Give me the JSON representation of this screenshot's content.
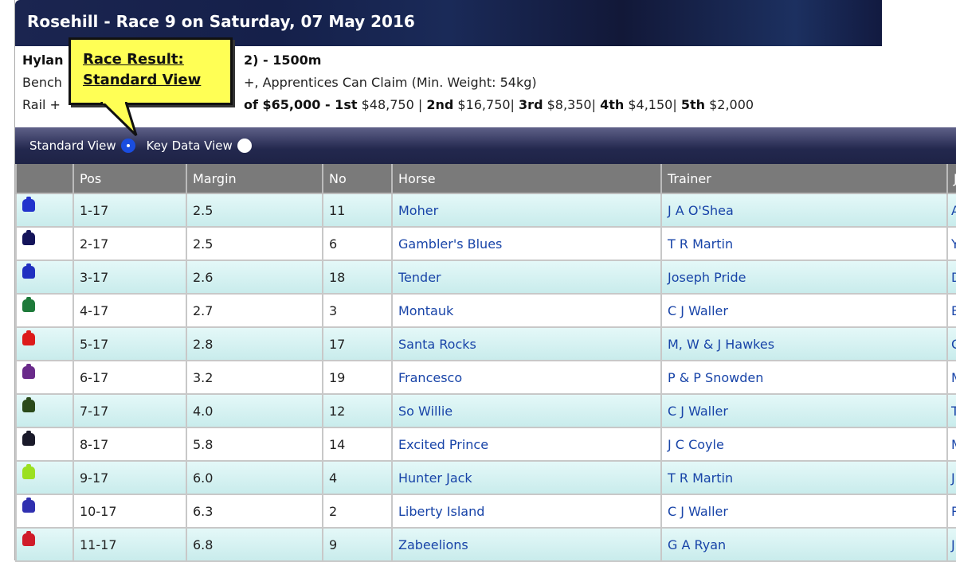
{
  "title": "Rosehill - Race 9 on Saturday, 07 May 2016",
  "race": {
    "name_visible_start": "Hylan",
    "name_visible_end": "2) - 1500m",
    "line2_start": "Bench",
    "line2_end": "+, Apprentices Can Claim (Min. Weight: 54kg)",
    "line3_start": "Rail +",
    "line3_mid": "of $65,000 - 1st",
    "prize1": "$48,750 |",
    "l2": "2nd",
    "prize2": "$16,750|",
    "l3": "3rd",
    "prize3": "$8,350|",
    "l4": "4th",
    "prize4": "$4,150|",
    "l5": "5th",
    "prize5": "$2,000"
  },
  "callout": {
    "line1": "Race Result:",
    "line2": "Standard View"
  },
  "views": {
    "standard": "Standard View",
    "key_data": "Key Data View",
    "selected": "standard"
  },
  "columns": [
    "",
    "Pos",
    "Margin",
    "No",
    "Horse",
    "Trainer",
    "J"
  ],
  "rows": [
    {
      "silk": "#2233cc",
      "pos": "1-17",
      "margin": "2.5",
      "no": "11",
      "horse": "Moher",
      "trainer": "J A O'Shea",
      "j": "A"
    },
    {
      "silk": "#14145a",
      "pos": "2-17",
      "margin": "2.5",
      "no": "6",
      "horse": "Gambler's Blues",
      "trainer": "T R Martin",
      "j": "Y"
    },
    {
      "silk": "#2030c0",
      "pos": "3-17",
      "margin": "2.6",
      "no": "18",
      "horse": "Tender",
      "trainer": "Joseph Pride",
      "j": "D"
    },
    {
      "silk": "#1e7a3a",
      "pos": "4-17",
      "margin": "2.7",
      "no": "3",
      "horse": "Montauk",
      "trainer": "C J Waller",
      "j": "B"
    },
    {
      "silk": "#dd1a1a",
      "pos": "5-17",
      "margin": "2.8",
      "no": "17",
      "horse": "Santa Rocks",
      "trainer": "M, W & J Hawkes",
      "j": "C"
    },
    {
      "silk": "#6a2a8a",
      "pos": "6-17",
      "margin": "3.2",
      "no": "19",
      "horse": "Francesco",
      "trainer": "P & P Snowden",
      "j": "M"
    },
    {
      "silk": "#2a4a1a",
      "pos": "7-17",
      "margin": "4.0",
      "no": "12",
      "horse": "So Willie",
      "trainer": "C J Waller",
      "j": "T"
    },
    {
      "silk": "#1a1a2a",
      "pos": "8-17",
      "margin": "5.8",
      "no": "14",
      "horse": "Excited Prince",
      "trainer": "J C Coyle",
      "j": "M"
    },
    {
      "silk": "#9be020",
      "pos": "9-17",
      "margin": "6.0",
      "no": "4",
      "horse": "Hunter Jack",
      "trainer": "T R Martin",
      "j": "J"
    },
    {
      "silk": "#3030b0",
      "pos": "10-17",
      "margin": "6.3",
      "no": "2",
      "horse": "Liberty Island",
      "trainer": "C J Waller",
      "j": "R"
    },
    {
      "silk": "#d01c2a",
      "pos": "11-17",
      "margin": "6.8",
      "no": "9",
      "horse": "Zabeelions",
      "trainer": "G A Ryan",
      "j": "J"
    }
  ]
}
